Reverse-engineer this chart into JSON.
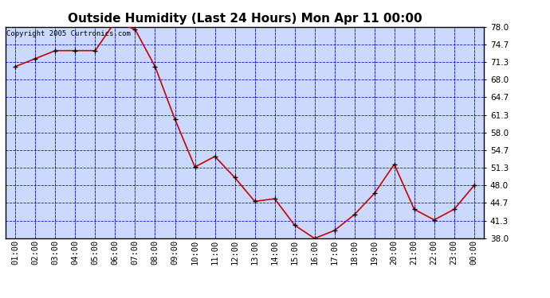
{
  "title": "Outside Humidity (Last 24 Hours) Mon Apr 11 00:00",
  "copyright": "Copyright 2005 Curtronics.com",
  "x_labels": [
    "01:00",
    "02:00",
    "03:00",
    "04:00",
    "05:00",
    "06:00",
    "07:00",
    "08:00",
    "09:00",
    "10:00",
    "11:00",
    "12:00",
    "13:00",
    "14:00",
    "15:00",
    "16:00",
    "17:00",
    "18:00",
    "19:00",
    "20:00",
    "21:00",
    "22:00",
    "23:00",
    "00:00"
  ],
  "y_values": [
    70.5,
    72.0,
    73.5,
    73.5,
    73.5,
    79.0,
    77.5,
    70.5,
    60.5,
    51.5,
    53.5,
    49.5,
    45.0,
    45.5,
    40.5,
    38.0,
    39.5,
    42.5,
    46.5,
    52.0,
    43.5,
    41.5,
    43.5,
    48.0
  ],
  "ylim": [
    38.0,
    78.0
  ],
  "yticks": [
    38.0,
    41.3,
    44.7,
    48.0,
    51.3,
    54.7,
    58.0,
    61.3,
    64.7,
    68.0,
    71.3,
    74.7,
    78.0
  ],
  "ytick_labels": [
    "38.0",
    "41.3",
    "44.7",
    "48.0",
    "51.3",
    "54.7",
    "58.0",
    "61.3",
    "64.7",
    "68.0",
    "71.3",
    "74.7",
    "78.0"
  ],
  "line_color": "#cc0000",
  "marker_color": "#000000",
  "plot_bg_color": "#ccd9ff",
  "grid_color": "#0000bb",
  "title_color": "#000000",
  "title_fontsize": 11,
  "copyright_fontsize": 6.5,
  "tick_fontsize": 7.5,
  "fig_bg_color": "#ffffff"
}
